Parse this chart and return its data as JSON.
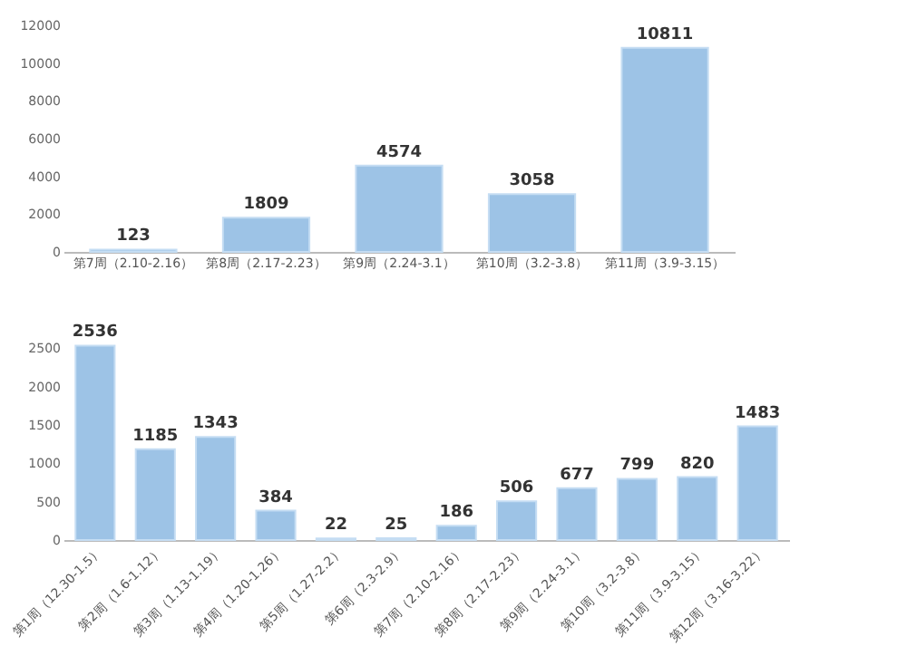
{
  "chart_data": [
    {
      "type": "bar",
      "categories": [
        "第7周（2.10-2.16）",
        "第8周（2.17-2.23）",
        "第9周（2.24-3.1）",
        "第10周（3.2-3.8）",
        "第11周（3.9-3.15）"
      ],
      "values": [
        123,
        1809,
        4574,
        3058,
        10811
      ],
      "color": "#9dc3e6",
      "ylim": [
        0,
        12000
      ],
      "yticks": [
        0,
        2000,
        4000,
        6000,
        8000,
        10000,
        12000
      ],
      "data_labels": true,
      "grid": false
    },
    {
      "type": "bar",
      "categories": [
        "第1周（12.30-1.5）",
        "第2周（1.6-1.12）",
        "第3周（1.13-1.19）",
        "第4周（1.20-1.26）",
        "第5周（1.27-2.2）",
        "第6周（2.3-2.9）",
        "第7周（2.10-2.16）",
        "第8周（2.17-2.23）",
        "第9周（2.24-3.1）",
        "第10周（3.2-3.8）",
        "第11周（3.9-3.15）",
        "第12周（3.16-3.22）"
      ],
      "values": [
        2536,
        1185,
        1343,
        384,
        22,
        25,
        186,
        506,
        677,
        799,
        820,
        1483
      ],
      "color": "#9dc3e6",
      "ylim": [
        0,
        2600
      ],
      "yticks": [
        0,
        500,
        1000,
        1500,
        2000,
        2500
      ],
      "data_labels": true,
      "grid": false
    }
  ]
}
